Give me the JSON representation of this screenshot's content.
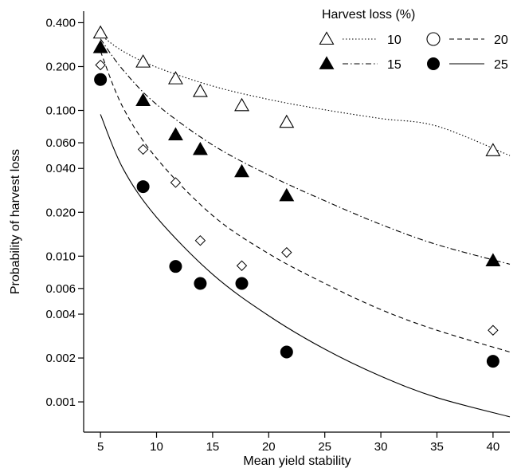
{
  "chart_data": {
    "type": "scatter",
    "xlabel": "Mean yield stability",
    "ylabel": "Probability of harvest loss",
    "xlim": [
      3.5,
      41.5
    ],
    "ylim": [
      0.00062,
      0.48
    ],
    "y_scale": "log",
    "x_ticks": [
      5,
      10,
      15,
      20,
      25,
      30,
      35,
      40
    ],
    "x_tick_labels": [
      "5",
      "10",
      "15",
      "20",
      "25",
      "30",
      "35",
      "40"
    ],
    "y_ticks": [
      0.001,
      0.002,
      0.004,
      0.006,
      0.01,
      0.02,
      0.04,
      0.06,
      0.1,
      0.2,
      0.4
    ],
    "y_tick_labels": [
      "0.001",
      "0.002",
      "0.004",
      "0.006",
      "0.010",
      "0.020",
      "0.040",
      "0.060",
      "0.100",
      "0.200",
      "0.400"
    ],
    "legend": {
      "title": "Harvest loss (%)",
      "placement": "top-right"
    },
    "series": [
      {
        "name": "10",
        "marker": "open-triangle",
        "line": "dotted",
        "points": [
          [
            5,
            0.34
          ],
          [
            8.8,
            0.215
          ],
          [
            11.7,
            0.165
          ],
          [
            13.9,
            0.135
          ],
          [
            17.6,
            0.108
          ],
          [
            21.6,
            0.083
          ],
          [
            40,
            0.053
          ]
        ],
        "fit": [
          [
            5,
            0.33
          ],
          [
            7,
            0.255
          ],
          [
            10,
            0.198
          ],
          [
            15,
            0.147
          ],
          [
            20,
            0.119
          ],
          [
            25,
            0.101
          ],
          [
            30,
            0.088
          ],
          [
            35,
            0.078
          ],
          [
            41.5,
            0.049
          ]
        ]
      },
      {
        "name": "15",
        "marker": "filled-triangle",
        "line": "dash-dot",
        "points": [
          [
            5,
            0.27
          ],
          [
            8.8,
            0.117
          ],
          [
            11.7,
            0.068
          ],
          [
            13.9,
            0.054
          ],
          [
            17.6,
            0.038
          ],
          [
            21.6,
            0.026
          ],
          [
            40,
            0.0093
          ]
        ],
        "fit": [
          [
            5,
            0.31
          ],
          [
            7,
            0.19
          ],
          [
            10,
            0.11
          ],
          [
            15,
            0.058
          ],
          [
            20,
            0.036
          ],
          [
            25,
            0.024
          ],
          [
            30,
            0.0165
          ],
          [
            35,
            0.012
          ],
          [
            41.5,
            0.0088
          ]
        ]
      },
      {
        "name": "20",
        "marker": "open-circle",
        "line": "dashed",
        "points": [
          [
            5,
            0.205
          ],
          [
            8.8,
            0.054
          ],
          [
            11.7,
            0.032
          ],
          [
            13.9,
            0.0128
          ],
          [
            17.6,
            0.0086
          ],
          [
            21.6,
            0.0106
          ],
          [
            40,
            0.0031
          ]
        ],
        "fit": [
          [
            5,
            0.255
          ],
          [
            7,
            0.105
          ],
          [
            10,
            0.047
          ],
          [
            15,
            0.019
          ],
          [
            20,
            0.0104
          ],
          [
            25,
            0.0065
          ],
          [
            30,
            0.0043
          ],
          [
            35,
            0.0031
          ],
          [
            41.5,
            0.0022
          ]
        ]
      },
      {
        "name": "25",
        "marker": "filled-circle",
        "line": "solid",
        "points": [
          [
            5,
            0.163
          ],
          [
            8.8,
            0.03
          ],
          [
            11.7,
            0.0085
          ],
          [
            13.9,
            0.0065
          ],
          [
            17.6,
            0.0065
          ],
          [
            21.6,
            0.0022
          ],
          [
            40,
            0.0019
          ]
        ],
        "fit": [
          [
            5,
            0.094
          ],
          [
            7,
            0.04
          ],
          [
            10,
            0.0185
          ],
          [
            15,
            0.0075
          ],
          [
            20,
            0.0039
          ],
          [
            25,
            0.0023
          ],
          [
            30,
            0.0015
          ],
          [
            35,
            0.00107
          ],
          [
            41.5,
            0.00079
          ]
        ]
      }
    ]
  }
}
